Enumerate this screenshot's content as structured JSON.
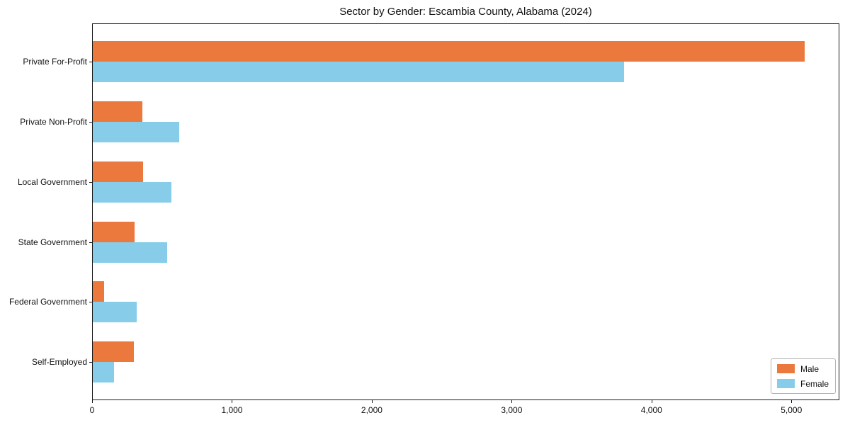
{
  "title": "Sector by Gender: Escambia County, Alabama (2024)",
  "legend": {
    "position": "lower right",
    "items": [
      {
        "label": "Male",
        "color": "#EB783C"
      },
      {
        "label": "Female",
        "color": "#87CDEA"
      }
    ]
  },
  "chart_data": {
    "type": "bar",
    "orientation": "horizontal",
    "title": "Sector by Gender: Escambia County, Alabama (2024)",
    "categories": [
      "Private For-Profit",
      "Private Non-Profit",
      "Local Government",
      "State Government",
      "Federal Government",
      "Self-Employed"
    ],
    "series": [
      {
        "name": "Male",
        "color": "#EB783C",
        "values": [
          5090,
          355,
          360,
          300,
          80,
          295
        ]
      },
      {
        "name": "Female",
        "color": "#87CDEA",
        "values": [
          3800,
          620,
          560,
          530,
          315,
          150
        ]
      }
    ],
    "xlabel": "",
    "ylabel": "",
    "xlim": [
      0,
      5343
    ],
    "xticks": [
      0,
      1000,
      2000,
      3000,
      4000,
      5000
    ],
    "xtick_labels": [
      "0",
      "1,000",
      "2,000",
      "3,000",
      "4,000",
      "5,000"
    ],
    "grid": false,
    "legend_position": "lower right",
    "plot_border": true
  }
}
